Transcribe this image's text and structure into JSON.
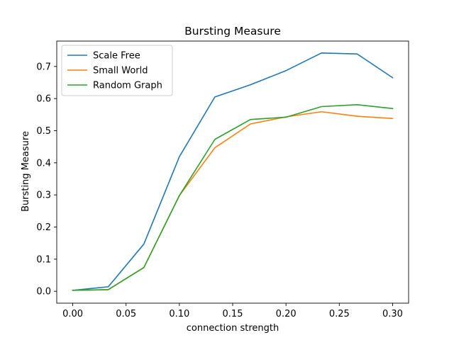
{
  "chart_data": {
    "type": "line",
    "title": "Bursting Measure",
    "xlabel": "connection strength",
    "ylabel": "Bursting Measure",
    "xlim": [
      -0.015,
      0.315
    ],
    "ylim": [
      -0.037,
      0.779
    ],
    "xticks": [
      0.0,
      0.05,
      0.1,
      0.15,
      0.2,
      0.25,
      0.3
    ],
    "xtick_labels": [
      "0.00",
      "0.05",
      "0.10",
      "0.15",
      "0.20",
      "0.25",
      "0.30"
    ],
    "yticks": [
      0.0,
      0.1,
      0.2,
      0.3,
      0.4,
      0.5,
      0.6,
      0.7
    ],
    "ytick_labels": [
      "0.0",
      "0.1",
      "0.2",
      "0.3",
      "0.4",
      "0.5",
      "0.6",
      "0.7"
    ],
    "grid": false,
    "legend_position": "top-left",
    "x": [
      0.0,
      0.0333,
      0.0667,
      0.1,
      0.1333,
      0.1667,
      0.2,
      0.2333,
      0.2667,
      0.3
    ],
    "series": [
      {
        "name": "Scale Free",
        "color": "#1f77b4",
        "values": [
          0.003,
          0.014,
          0.147,
          0.419,
          0.605,
          0.643,
          0.687,
          0.742,
          0.739,
          0.665
        ]
      },
      {
        "name": "Small World",
        "color": "#ff7f0e",
        "values": [
          0.003,
          0.005,
          0.074,
          0.298,
          0.447,
          0.521,
          0.543,
          0.559,
          0.545,
          0.538
        ]
      },
      {
        "name": "Random Graph",
        "color": "#2ca02c",
        "values": [
          0.003,
          0.005,
          0.074,
          0.298,
          0.473,
          0.535,
          0.542,
          0.575,
          0.581,
          0.569
        ]
      }
    ]
  }
}
